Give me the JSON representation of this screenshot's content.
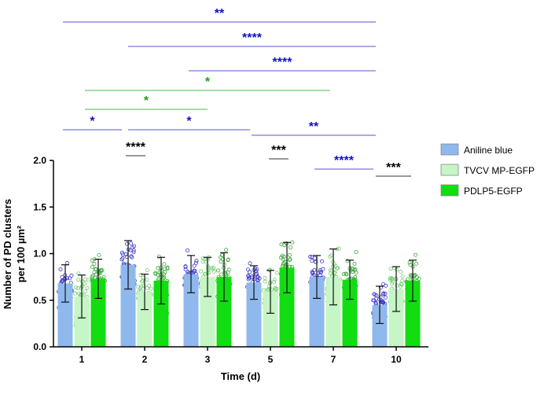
{
  "chart_data": {
    "type": "bar",
    "xlabel": "Time (d)",
    "ylabel_line1": "Number of PD clusters",
    "ylabel_line2": "per 100 µm²",
    "ylim": [
      0,
      2.0
    ],
    "yticks": [
      "0.0",
      "0.5",
      "1.0",
      "1.5",
      "2.0"
    ],
    "categories": [
      "1",
      "2",
      "3",
      "5",
      "7",
      "10"
    ],
    "legend_position": "right",
    "series": [
      {
        "name": "Aniline blue",
        "color": "#8fb8ec",
        "point_color": "#3b3bcf",
        "values": [
          0.68,
          0.88,
          0.78,
          0.69,
          0.75,
          0.45
        ],
        "sd": [
          0.2,
          0.26,
          0.2,
          0.18,
          0.23,
          0.2
        ]
      },
      {
        "name": "TVCV MP-EGFP",
        "color": "#c6f5c6",
        "point_color": "#6fcf6f",
        "values": [
          0.54,
          0.59,
          0.75,
          0.59,
          0.75,
          0.62
        ],
        "sd": [
          0.23,
          0.19,
          0.21,
          0.23,
          0.3,
          0.24
        ]
      },
      {
        "name": "PDLP5-EGFP",
        "color": "#11dd11",
        "point_color": "#3aa83a",
        "values": [
          0.73,
          0.71,
          0.75,
          0.85,
          0.72,
          0.71
        ],
        "sd": [
          0.21,
          0.25,
          0.26,
          0.27,
          0.21,
          0.22
        ]
      }
    ],
    "significance": [
      {
        "label": "**",
        "color": "#1010c8"
      },
      {
        "label": "****",
        "color": "#1010c8"
      },
      {
        "label": "****",
        "color": "#1010c8"
      },
      {
        "label": "*",
        "color": "#1aa31a"
      },
      {
        "label": "*",
        "color": "#1aa31a"
      },
      {
        "label": "*",
        "color": "#1010c8"
      },
      {
        "label": "*",
        "color": "#1010c8"
      },
      {
        "label": "**",
        "color": "#1010c8"
      },
      {
        "label": "****",
        "color": "#000000"
      },
      {
        "label": "***",
        "color": "#000000"
      },
      {
        "label": "****",
        "color": "#1010c8"
      },
      {
        "label": "***",
        "color": "#000000"
      }
    ]
  }
}
